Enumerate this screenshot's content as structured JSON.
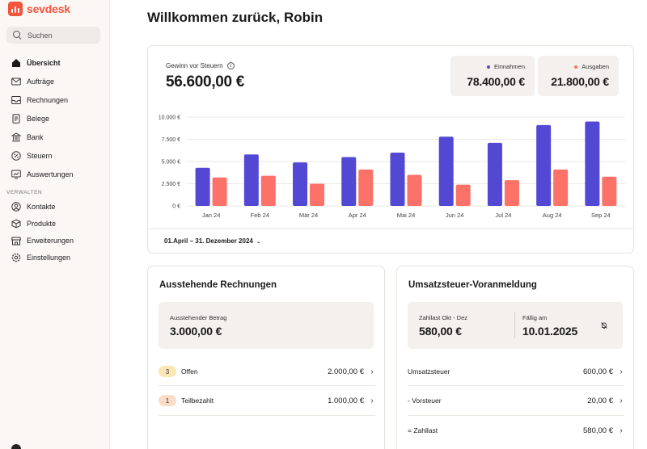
{
  "app": {
    "name": "sevdesk"
  },
  "search": {
    "label": "Suchen"
  },
  "sidebar": {
    "items": [
      {
        "label": "Übersicht",
        "icon": "home-icon",
        "active": true
      },
      {
        "label": "Aufträge",
        "icon": "mail-icon"
      },
      {
        "label": "Rechnungen",
        "icon": "inbox-icon"
      },
      {
        "label": "Belege",
        "icon": "receipt-icon"
      },
      {
        "label": "Bank",
        "icon": "bank-icon"
      },
      {
        "label": "Steuern",
        "icon": "percent-icon"
      },
      {
        "label": "Auswertungen",
        "icon": "analytics-icon"
      }
    ],
    "section_label": "VERWALTEN",
    "manage_items": [
      {
        "label": "Kontakte",
        "icon": "contacts-icon"
      },
      {
        "label": "Produkte",
        "icon": "box-icon"
      },
      {
        "label": "Erweiterungen",
        "icon": "store-icon"
      },
      {
        "label": "Einstellungen",
        "icon": "gear-icon"
      }
    ]
  },
  "header": {
    "welcome": "Willkommen zurück, Robin"
  },
  "profit": {
    "label": "Gewinn vor Steuern",
    "value": "56.600,00 €",
    "income_label": "Einnahmen",
    "income_value": "78.400,00 €",
    "expense_label": "Ausgaben",
    "expense_value": "21.800,00 €",
    "date_range": "01.April – 31. Dezember 2024"
  },
  "colors": {
    "income": "#5248d4",
    "expense": "#fc7168",
    "accent": "#f2553d"
  },
  "chart_data": {
    "type": "bar",
    "categories": [
      "Jan 24",
      "Feb 24",
      "Mär 24",
      "Apr 24",
      "Mai 24",
      "Jun 24",
      "Jul 24",
      "Aug 24",
      "Sep 24"
    ],
    "series": [
      {
        "name": "Einnahmen",
        "values": [
          4300,
          5800,
          4900,
          5500,
          6000,
          7800,
          7100,
          9100,
          9500
        ]
      },
      {
        "name": "Ausgaben",
        "values": [
          3200,
          3400,
          2500,
          4100,
          3500,
          2400,
          2900,
          4100,
          3300
        ]
      }
    ],
    "yticks": [
      "0 €",
      "2.500 €",
      "5.000 €",
      "7.500 €",
      "10.000 €"
    ],
    "ylim": [
      0,
      10000
    ],
    "grid": true
  },
  "open_invoices": {
    "title": "Ausstehende Rechnungen",
    "amount_label": "Ausstehender Betrag",
    "amount_value": "3.000,00 €",
    "rows": [
      {
        "count": "3",
        "label": "Offen",
        "amount": "2.000,00 €"
      },
      {
        "count": "1",
        "label": "Teilbezahlt",
        "amount": "1.000,00 €"
      }
    ]
  },
  "vat": {
    "title": "Umsatzsteuer-Voranmeldung",
    "liability_label": "Zahllast Okt - Dez",
    "liability_value": "580,00 €",
    "due_label": "Fällig am",
    "due_value": "10.01.2025",
    "rows": [
      {
        "label": "Umsatzsteuer",
        "amount": "600,00 €"
      },
      {
        "label": "- Vorsteuer",
        "amount": "20,00 €"
      },
      {
        "label": "= Zahllast",
        "amount": "580,00 €"
      }
    ]
  }
}
